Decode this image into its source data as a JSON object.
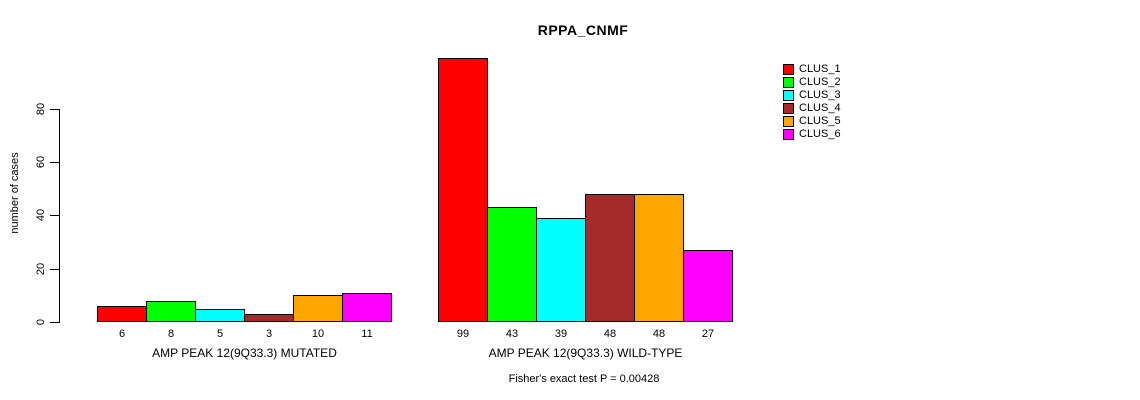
{
  "chart_data": {
    "type": "bar",
    "title": "RPPA_CNMF",
    "ylabel": "number of cases",
    "xlabel": "",
    "ylim": [
      0,
      110
    ],
    "yticks": [
      0,
      20,
      40,
      60,
      80
    ],
    "grid": false,
    "legend_position": "right",
    "series": [
      {
        "name": "CLUS_1",
        "color": "#FF0000"
      },
      {
        "name": "CLUS_2",
        "color": "#00FF00"
      },
      {
        "name": "CLUS_3",
        "color": "#00FFFF"
      },
      {
        "name": "CLUS_4",
        "color": "#A52A2A"
      },
      {
        "name": "CLUS_5",
        "color": "#FFA500"
      },
      {
        "name": "CLUS_6",
        "color": "#FF00FF"
      }
    ],
    "groups": [
      {
        "label": "AMP PEAK 12(9Q33.3) MUTATED",
        "values": [
          6,
          8,
          5,
          3,
          10,
          11
        ]
      },
      {
        "label": "AMP PEAK 12(9Q33.3) WILD-TYPE",
        "values": [
          99,
          43,
          39,
          48,
          48,
          27
        ]
      }
    ],
    "annotation": "Fisher's exact test P = 0.00428"
  }
}
